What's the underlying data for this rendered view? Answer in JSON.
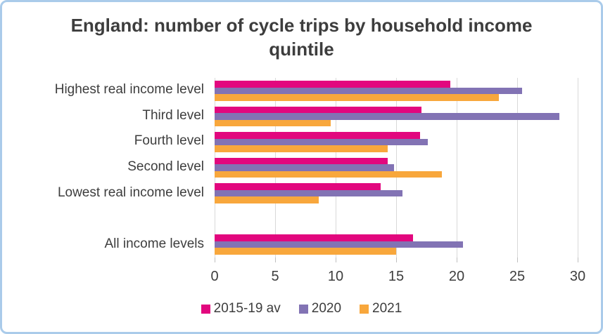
{
  "chart_data": {
    "type": "bar",
    "orientation": "horizontal",
    "title": "England: number of cycle trips by household income quintile",
    "categories": [
      "Highest real income level",
      "Third level",
      "Fourth level",
      "Second level",
      "Lowest real income level",
      "",
      "All income levels"
    ],
    "series": [
      {
        "name": "2015-19 av",
        "color": "#E2077E",
        "values": [
          19.5,
          17.1,
          17.0,
          14.3,
          13.7,
          null,
          16.4
        ]
      },
      {
        "name": "2020",
        "color": "#8273B4",
        "values": [
          25.4,
          28.5,
          17.6,
          14.8,
          15.5,
          null,
          20.5
        ]
      },
      {
        "name": "2021",
        "color": "#F8A73C",
        "values": [
          23.5,
          9.6,
          14.3,
          18.8,
          8.6,
          null,
          15.0
        ]
      }
    ],
    "x_ticks": [
      0,
      5,
      10,
      15,
      20,
      25,
      30
    ],
    "xlim": [
      0,
      30
    ],
    "grid": "vertical",
    "gridline_color": "#d9d9d9",
    "legend_position": "bottom",
    "frame_color": "#aacbea"
  }
}
